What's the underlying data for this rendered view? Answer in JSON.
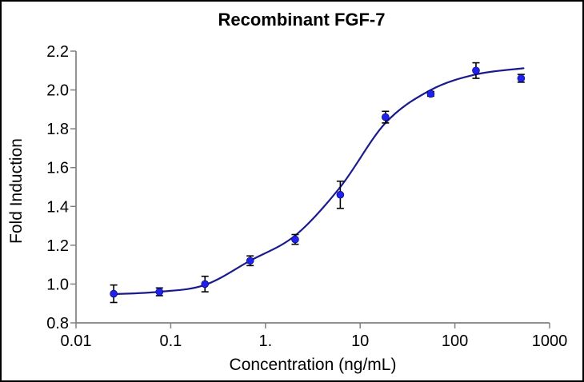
{
  "chart_data": {
    "type": "scatter",
    "title": "Recombinant FGF-7",
    "xlabel": "Concentration (ng/mL)",
    "ylabel": "Fold Induction",
    "x_scale": "log",
    "y_scale": "linear",
    "xlim": [
      0.01,
      1000
    ],
    "ylim": [
      0.8,
      2.2
    ],
    "grid": false,
    "legend": "none",
    "x_ticks": [
      {
        "v": 0.01,
        "label": "0.01"
      },
      {
        "v": 0.1,
        "label": "0.1"
      },
      {
        "v": 1,
        "label": "1."
      },
      {
        "v": 10,
        "label": "10"
      },
      {
        "v": 100,
        "label": "100"
      },
      {
        "v": 1000,
        "label": "1000"
      }
    ],
    "y_ticks": [
      {
        "v": 0.8,
        "label": "0.8"
      },
      {
        "v": 1.0,
        "label": "1.0"
      },
      {
        "v": 1.2,
        "label": "1.2"
      },
      {
        "v": 1.4,
        "label": "1.4"
      },
      {
        "v": 1.6,
        "label": "1.6"
      },
      {
        "v": 1.8,
        "label": "1.8"
      },
      {
        "v": 2.0,
        "label": "2.0"
      },
      {
        "v": 2.2,
        "label": "2.2"
      }
    ],
    "series": [
      {
        "marker": "circle",
        "marker_color": "#2121ec",
        "error_bar_color": "#000000",
        "points": [
          {
            "x": 0.025,
            "y": 0.95,
            "err": 0.045
          },
          {
            "x": 0.076,
            "y": 0.96,
            "err": 0.02
          },
          {
            "x": 0.23,
            "y": 1.0,
            "err": 0.04
          },
          {
            "x": 0.69,
            "y": 1.12,
            "err": 0.025
          },
          {
            "x": 2.06,
            "y": 1.23,
            "err": 0.025
          },
          {
            "x": 6.17,
            "y": 1.46,
            "err": 0.07
          },
          {
            "x": 18.5,
            "y": 1.86,
            "err": 0.03
          },
          {
            "x": 55.6,
            "y": 1.98,
            "err": 0.012
          },
          {
            "x": 167,
            "y": 2.1,
            "err": 0.04
          },
          {
            "x": 500,
            "y": 2.06,
            "err": 0.02
          }
        ]
      }
    ],
    "fit_curve": {
      "color": "#1a1a8c",
      "samples": [
        [
          0.025,
          0.948
        ],
        [
          0.076,
          0.96
        ],
        [
          0.229,
          0.995
        ],
        [
          0.686,
          1.12
        ],
        [
          2.06,
          1.25
        ],
        [
          6.17,
          1.5
        ],
        [
          18.5,
          1.83
        ],
        [
          55.6,
          2.0
        ],
        [
          167,
          2.08
        ],
        [
          530,
          2.112
        ]
      ]
    },
    "axis_color": "#808080",
    "text_color": "#000000",
    "frame_color": "#000000",
    "background": "#ffffff"
  }
}
